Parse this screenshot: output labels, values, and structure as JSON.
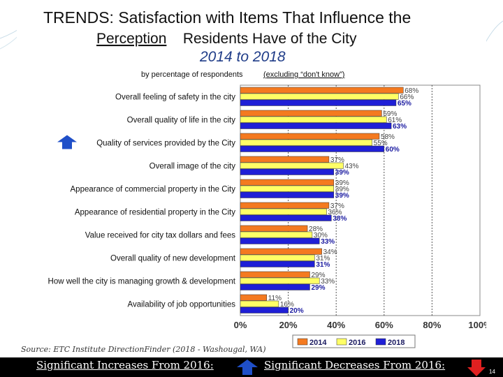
{
  "colors": {
    "c2014": "#f47a20",
    "c2016": "#ffff66",
    "c2018": "#1f1fd6",
    "increase_arrow": "#1f4fc8",
    "decrease_arrow": "#e02020",
    "title_dark": "#111111",
    "title_blue": "#1f3c88"
  },
  "title": {
    "line1": "TRENDS:  Satisfaction with Items That Influence the",
    "line2_underlined": "Perception",
    "line2_rest": " Residents Have of the City",
    "line3": "2014 to 2018"
  },
  "subtitle": {
    "before": "by percentage of respondents ",
    "underlined": "(excluding “don't know”)"
  },
  "source": "Source:  ETC Institute DirectionFinder (2018 - Washougal, WA)",
  "footer": {
    "increases_label": "Significant Increases From 2016:",
    "decreases_label": "Significant Decreases From 2016:",
    "page_number": "14"
  },
  "chart_data": {
    "type": "bar",
    "orientation": "horizontal",
    "title": "TRENDS:  Satisfaction with Items That Influence the Perception Residents Have of the City 2014 to 2018",
    "xlabel": "",
    "ylabel": "",
    "xlim": [
      0,
      100
    ],
    "grid": true,
    "legend_position": "bottom-right",
    "x_ticks": [
      "0%",
      "20%",
      "40%",
      "60%",
      "80%",
      "100%"
    ],
    "x_tick_values": [
      0,
      20,
      40,
      60,
      80,
      100
    ],
    "categories": [
      "Overall feeling of safety in the city",
      "Overall quality of life in the city",
      "Quality of services provided by the City",
      "Overall image of the city",
      "Appearance of commercial property in the City",
      "Appearance of residential property in the City",
      "Value received for city tax dollars and fees",
      "Overall quality of new development",
      "How well the city is managing growth & development",
      "Availability of job opportunities"
    ],
    "series": [
      {
        "name": "2014",
        "values": [
          68,
          59,
          58,
          37,
          39,
          37,
          28,
          34,
          29,
          11
        ],
        "labels": [
          "68%",
          "59%",
          "58%",
          "37%",
          "39%",
          "37%",
          "28%",
          "34%",
          "29%",
          "11%"
        ]
      },
      {
        "name": "2016",
        "values": [
          66,
          61,
          55,
          43,
          39,
          36,
          30,
          31,
          33,
          16
        ],
        "labels": [
          "66%",
          "61%",
          "55%",
          "43%",
          "39%",
          "36%",
          "30%",
          "31%",
          "33%",
          "16%"
        ]
      },
      {
        "name": "2018",
        "values": [
          65,
          63,
          60,
          39,
          39,
          38,
          33,
          31,
          29,
          20
        ],
        "labels": [
          "65%",
          "63%",
          "60%",
          "39%",
          "39%",
          "38%",
          "33%",
          "31%",
          "29%",
          "20%"
        ]
      }
    ],
    "significant_increase": [
      "Quality of services provided by the City"
    ],
    "significant_decrease": []
  }
}
